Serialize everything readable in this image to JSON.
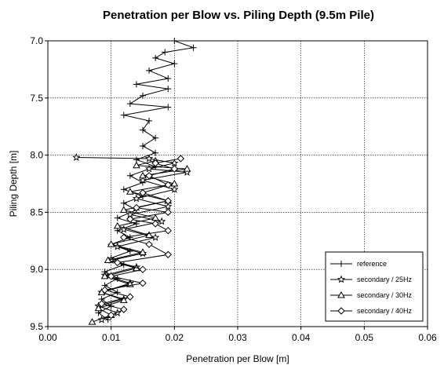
{
  "chart_data": {
    "type": "line",
    "title": "Penetration per Blow vs. Piling Depth (9.5m Pile)",
    "xlabel": "Penetration per Blow [m]",
    "ylabel": "Piling Depth [m]",
    "xlim": [
      0,
      0.06
    ],
    "ylim": [
      7.0,
      9.5
    ],
    "y_inverted": true,
    "x_ticks": [
      "0.00",
      "0.01",
      "0.02",
      "0.03",
      "0.04",
      "0.05",
      "0.06"
    ],
    "y_ticks": [
      "7.0",
      "7.5",
      "8.0",
      "8.5",
      "9.0",
      "9.5"
    ],
    "grid": true,
    "legend_position": "bottom-right",
    "series": [
      {
        "name": "reference",
        "marker": "plus",
        "points": [
          [
            0.02,
            7.0
          ],
          [
            0.023,
            7.06
          ],
          [
            0.0185,
            7.1
          ],
          [
            0.017,
            7.15
          ],
          [
            0.02,
            7.2
          ],
          [
            0.016,
            7.26
          ],
          [
            0.019,
            7.33
          ],
          [
            0.014,
            7.38
          ],
          [
            0.019,
            7.42
          ],
          [
            0.015,
            7.48
          ],
          [
            0.013,
            7.55
          ],
          [
            0.019,
            7.58
          ],
          [
            0.012,
            7.65
          ],
          [
            0.016,
            7.7
          ],
          [
            0.015,
            7.78
          ],
          [
            0.017,
            7.85
          ],
          [
            0.015,
            7.92
          ],
          [
            0.017,
            7.98
          ],
          [
            0.014,
            8.04
          ],
          [
            0.017,
            8.1
          ],
          [
            0.013,
            8.18
          ],
          [
            0.015,
            8.24
          ],
          [
            0.012,
            8.3
          ],
          [
            0.015,
            8.36
          ],
          [
            0.012,
            8.42
          ],
          [
            0.014,
            8.48
          ],
          [
            0.011,
            8.55
          ],
          [
            0.014,
            8.6
          ],
          [
            0.011,
            8.66
          ],
          [
            0.013,
            8.72
          ],
          [
            0.01,
            8.78
          ],
          [
            0.013,
            8.84
          ],
          [
            0.01,
            8.9
          ],
          [
            0.012,
            8.96
          ],
          [
            0.009,
            9.02
          ],
          [
            0.011,
            9.08
          ],
          [
            0.009,
            9.14
          ],
          [
            0.011,
            9.2
          ],
          [
            0.0085,
            9.26
          ],
          [
            0.01,
            9.32
          ],
          [
            0.008,
            9.38
          ],
          [
            0.0095,
            9.44
          ]
        ]
      },
      {
        "name": "secondary / 25Hz",
        "marker": "star",
        "points": [
          [
            0.0045,
            8.02
          ],
          [
            0.016,
            8.03
          ],
          [
            0.02,
            8.07
          ],
          [
            0.016,
            8.12
          ],
          [
            0.022,
            8.15
          ],
          [
            0.015,
            8.22
          ],
          [
            0.02,
            8.3
          ],
          [
            0.014,
            8.38
          ],
          [
            0.019,
            8.45
          ],
          [
            0.013,
            8.52
          ],
          [
            0.018,
            8.58
          ],
          [
            0.012,
            8.65
          ],
          [
            0.017,
            8.72
          ],
          [
            0.011,
            8.8
          ],
          [
            0.015,
            8.86
          ],
          [
            0.01,
            8.92
          ],
          [
            0.014,
            8.98
          ],
          [
            0.009,
            9.05
          ],
          [
            0.013,
            9.12
          ],
          [
            0.0085,
            9.2
          ],
          [
            0.012,
            9.26
          ],
          [
            0.008,
            9.32
          ],
          [
            0.011,
            9.38
          ],
          [
            0.0085,
            9.44
          ]
        ]
      },
      {
        "name": "secondary / 30Hz",
        "marker": "triangle",
        "points": [
          [
            0.017,
            8.05
          ],
          [
            0.014,
            8.09
          ],
          [
            0.022,
            8.12
          ],
          [
            0.015,
            8.18
          ],
          [
            0.02,
            8.25
          ],
          [
            0.013,
            8.32
          ],
          [
            0.019,
            8.4
          ],
          [
            0.012,
            8.48
          ],
          [
            0.017,
            8.55
          ],
          [
            0.011,
            8.62
          ],
          [
            0.016,
            8.7
          ],
          [
            0.01,
            8.78
          ],
          [
            0.015,
            8.85
          ],
          [
            0.0095,
            8.92
          ],
          [
            0.014,
            8.99
          ],
          [
            0.009,
            9.06
          ],
          [
            0.013,
            9.13
          ],
          [
            0.0085,
            9.2
          ],
          [
            0.012,
            9.27
          ],
          [
            0.008,
            9.34
          ],
          [
            0.01,
            9.4
          ],
          [
            0.007,
            9.46
          ]
        ]
      },
      {
        "name": "secondary / 40Hz",
        "marker": "diamond",
        "points": [
          [
            0.021,
            8.03
          ],
          [
            0.017,
            8.07
          ],
          [
            0.02,
            8.12
          ],
          [
            0.016,
            8.18
          ],
          [
            0.019,
            8.26
          ],
          [
            0.015,
            8.33
          ],
          [
            0.019,
            8.4
          ],
          [
            0.014,
            8.46
          ],
          [
            0.019,
            8.5
          ],
          [
            0.013,
            8.56
          ],
          [
            0.017,
            8.6
          ],
          [
            0.019,
            8.66
          ],
          [
            0.012,
            8.72
          ],
          [
            0.016,
            8.78
          ],
          [
            0.019,
            8.87
          ],
          [
            0.011,
            8.94
          ],
          [
            0.015,
            9.0
          ],
          [
            0.01,
            9.06
          ],
          [
            0.015,
            9.12
          ],
          [
            0.009,
            9.18
          ],
          [
            0.013,
            9.24
          ],
          [
            0.0085,
            9.3
          ],
          [
            0.012,
            9.35
          ],
          [
            0.01,
            9.4
          ]
        ]
      }
    ]
  }
}
